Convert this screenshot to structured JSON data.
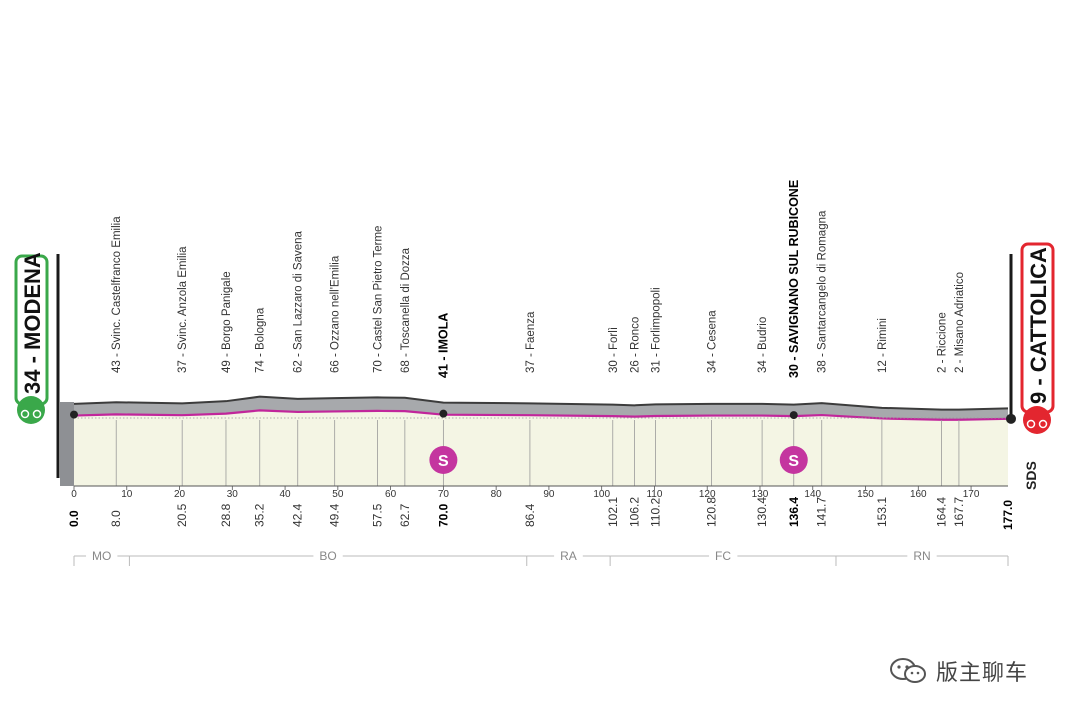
{
  "chart_data": {
    "type": "area",
    "title": "",
    "xlabel": "",
    "ylabel": "",
    "xlim": [
      0,
      177
    ],
    "x_ticks": [
      0,
      10,
      20,
      30,
      40,
      50,
      60,
      70,
      80,
      90,
      100,
      110,
      120,
      130,
      140,
      150,
      160,
      170
    ],
    "start": {
      "label": "34 - MODENA",
      "km": "0.0",
      "altitude_m": 34
    },
    "finish": {
      "label": "9 - CATTOLICA",
      "km": "177.0",
      "altitude_m": 9
    },
    "profile": [
      {
        "km": 0,
        "alt": 34
      },
      {
        "km": 8.0,
        "alt": 43
      },
      {
        "km": 20.5,
        "alt": 37
      },
      {
        "km": 28.8,
        "alt": 49
      },
      {
        "km": 35.2,
        "alt": 74
      },
      {
        "km": 42.4,
        "alt": 62
      },
      {
        "km": 49.4,
        "alt": 66
      },
      {
        "km": 57.5,
        "alt": 70
      },
      {
        "km": 62.7,
        "alt": 68
      },
      {
        "km": 70.0,
        "alt": 41
      },
      {
        "km": 86.4,
        "alt": 37
      },
      {
        "km": 102.1,
        "alt": 30
      },
      {
        "km": 106.2,
        "alt": 26
      },
      {
        "km": 110.2,
        "alt": 31
      },
      {
        "km": 120.8,
        "alt": 34
      },
      {
        "km": 130.4,
        "alt": 34
      },
      {
        "km": 136.4,
        "alt": 30
      },
      {
        "km": 141.7,
        "alt": 38
      },
      {
        "km": 153.1,
        "alt": 12
      },
      {
        "km": 164.4,
        "alt": 2
      },
      {
        "km": 167.7,
        "alt": 2
      },
      {
        "km": 177.0,
        "alt": 9
      }
    ],
    "places": [
      {
        "km": "8.0",
        "pos": 8.0,
        "label": "43 - Svinc. Castelfranco Emilia",
        "bold": false
      },
      {
        "km": "20.5",
        "pos": 20.5,
        "label": "37 - Svinc. Anzola Emilia",
        "bold": false
      },
      {
        "km": "28.8",
        "pos": 28.8,
        "label": "49 - Borgo Panigale",
        "bold": false
      },
      {
        "km": "35.2",
        "pos": 35.2,
        "label": "74 - Bologna",
        "bold": false
      },
      {
        "km": "42.4",
        "pos": 42.4,
        "label": "62 - San Lazzaro di Savena",
        "bold": false
      },
      {
        "km": "49.4",
        "pos": 49.4,
        "label": "66 - Ozzano nell'Emilia",
        "bold": false
      },
      {
        "km": "57.5",
        "pos": 57.5,
        "label": "70 - Castel San Pietro Terme",
        "bold": false
      },
      {
        "km": "62.7",
        "pos": 62.7,
        "label": "68 - Toscanella di Dozza",
        "bold": false
      },
      {
        "km": "70.0",
        "pos": 70.0,
        "label": "41 - IMOLA",
        "bold": true
      },
      {
        "km": "86.4",
        "pos": 86.4,
        "label": "37 - Faenza",
        "bold": false
      },
      {
        "km": "102.1",
        "pos": 102.1,
        "label": "30 - Forlì",
        "bold": false
      },
      {
        "km": "106.2",
        "pos": 106.2,
        "label": "26 - Ronco",
        "bold": false
      },
      {
        "km": "110.2",
        "pos": 110.2,
        "label": "31 - Forlimpopoli",
        "bold": false
      },
      {
        "km": "120.8",
        "pos": 120.8,
        "label": "34 - Cesena",
        "bold": false
      },
      {
        "km": "130.4",
        "pos": 130.4,
        "label": "34 - Budrio",
        "bold": false
      },
      {
        "km": "136.4",
        "pos": 136.4,
        "label": "30 - SAVIGNANO SUL RUBICONE",
        "bold": true
      },
      {
        "km": "141.7",
        "pos": 141.7,
        "label": "38 - Santarcangelo di Romagna",
        "bold": false
      },
      {
        "km": "153.1",
        "pos": 153.1,
        "label": "12 - Rimini",
        "bold": false
      },
      {
        "km": "164.4",
        "pos": 164.4,
        "label": "2 - Riccione",
        "bold": false
      },
      {
        "km": "167.7",
        "pos": 167.7,
        "label": "2 - Misano Adriatico",
        "bold": false
      }
    ],
    "sprints": [
      {
        "km": 70.0,
        "icon": "S"
      },
      {
        "km": 136.4,
        "icon": "S"
      }
    ],
    "regions": [
      {
        "code": "MO",
        "from": 0,
        "to": 10.5
      },
      {
        "code": "BO",
        "from": 10.5,
        "to": 85.8
      },
      {
        "code": "RA",
        "from": 85.8,
        "to": 101.6
      },
      {
        "code": "FC",
        "from": 101.6,
        "to": 144.4
      },
      {
        "code": "RN",
        "from": 144.4,
        "to": 177
      }
    ],
    "logo": "SDS",
    "colors": {
      "start": "#3aa84a",
      "finish": "#e3262f",
      "sprint": "#c4359f",
      "profile_line": "#c1269b",
      "profile_fill": "#f4f5e4",
      "top_band": "#a7a9ac"
    }
  },
  "watermark": {
    "text": "版主聊车",
    "icon": "wechat-icon"
  }
}
